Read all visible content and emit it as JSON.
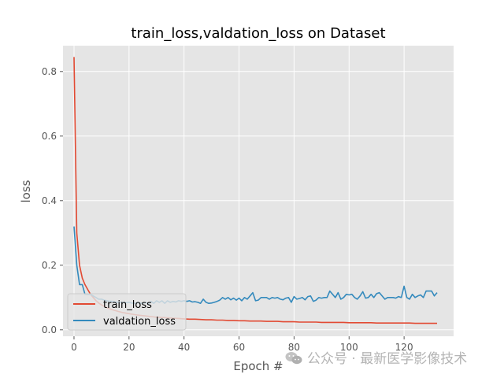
{
  "chart_data": {
    "type": "line",
    "title": "train_loss,valdation_loss on Dataset",
    "xlabel": "Epoch #",
    "ylabel": "loss",
    "xlim": [
      -4,
      138
    ],
    "ylim": [
      -0.02,
      0.88
    ],
    "xticks": [
      0,
      20,
      40,
      60,
      80,
      100,
      120
    ],
    "yticks": [
      0.0,
      0.2,
      0.4,
      0.6,
      0.8
    ],
    "ytick_labels": [
      "0.0",
      "0.2",
      "0.4",
      "0.6",
      "0.8"
    ],
    "grid": true,
    "legend_position": "lower-left",
    "series": [
      {
        "name": "train_loss",
        "color": "#e24a33",
        "x": [
          0,
          1,
          2,
          3,
          4,
          5,
          6,
          7,
          8,
          9,
          10,
          12,
          14,
          16,
          18,
          20,
          22,
          24,
          26,
          28,
          30,
          32,
          34,
          36,
          38,
          40,
          42,
          44,
          46,
          48,
          50,
          52,
          54,
          56,
          58,
          60,
          62,
          64,
          66,
          68,
          70,
          72,
          74,
          76,
          78,
          80,
          82,
          84,
          86,
          88,
          90,
          92,
          94,
          96,
          98,
          100,
          102,
          104,
          106,
          108,
          110,
          112,
          114,
          116,
          118,
          120,
          122,
          124,
          126,
          128,
          130,
          132
        ],
        "y": [
          0.845,
          0.3,
          0.2,
          0.16,
          0.14,
          0.125,
          0.11,
          0.1,
          0.09,
          0.083,
          0.077,
          0.068,
          0.062,
          0.057,
          0.053,
          0.05,
          0.047,
          0.045,
          0.043,
          0.041,
          0.039,
          0.038,
          0.037,
          0.036,
          0.035,
          0.034,
          0.033,
          0.033,
          0.032,
          0.031,
          0.031,
          0.03,
          0.03,
          0.029,
          0.029,
          0.028,
          0.028,
          0.027,
          0.027,
          0.027,
          0.026,
          0.026,
          0.026,
          0.025,
          0.025,
          0.025,
          0.024,
          0.024,
          0.024,
          0.024,
          0.023,
          0.023,
          0.023,
          0.023,
          0.023,
          0.022,
          0.022,
          0.022,
          0.022,
          0.022,
          0.021,
          0.021,
          0.021,
          0.021,
          0.021,
          0.021,
          0.021,
          0.02,
          0.02,
          0.02,
          0.02,
          0.02
        ]
      },
      {
        "name": "valdation_loss",
        "color": "#348abd",
        "x": [
          0,
          1,
          2,
          3,
          4,
          5,
          6,
          7,
          8,
          9,
          10,
          11,
          12,
          13,
          14,
          15,
          16,
          17,
          18,
          19,
          20,
          21,
          22,
          23,
          24,
          25,
          26,
          27,
          28,
          29,
          30,
          31,
          32,
          33,
          34,
          35,
          36,
          37,
          38,
          39,
          40,
          41,
          42,
          43,
          44,
          45,
          46,
          47,
          48,
          49,
          50,
          51,
          52,
          53,
          54,
          55,
          56,
          57,
          58,
          59,
          60,
          61,
          62,
          63,
          64,
          65,
          66,
          67,
          68,
          69,
          70,
          71,
          72,
          73,
          74,
          75,
          76,
          77,
          78,
          79,
          80,
          81,
          82,
          83,
          84,
          85,
          86,
          87,
          88,
          89,
          90,
          91,
          92,
          93,
          94,
          95,
          96,
          97,
          98,
          99,
          100,
          101,
          102,
          103,
          104,
          105,
          106,
          107,
          108,
          109,
          110,
          111,
          112,
          113,
          114,
          115,
          116,
          117,
          118,
          119,
          120,
          121,
          122,
          123,
          124,
          125,
          126,
          127,
          128,
          129,
          130,
          131,
          132
        ],
        "y": [
          0.32,
          0.2,
          0.14,
          0.14,
          0.11,
          0.11,
          0.11,
          0.105,
          0.1,
          0.095,
          0.095,
          0.092,
          0.09,
          0.088,
          0.088,
          0.086,
          0.085,
          0.085,
          0.085,
          0.084,
          0.085,
          0.083,
          0.082,
          0.084,
          0.083,
          0.082,
          0.085,
          0.08,
          0.088,
          0.082,
          0.09,
          0.085,
          0.09,
          0.082,
          0.09,
          0.085,
          0.088,
          0.086,
          0.09,
          0.088,
          0.09,
          0.088,
          0.09,
          0.086,
          0.087,
          0.085,
          0.082,
          0.095,
          0.085,
          0.082,
          0.083,
          0.085,
          0.088,
          0.092,
          0.1,
          0.095,
          0.1,
          0.093,
          0.098,
          0.092,
          0.098,
          0.09,
          0.1,
          0.095,
          0.105,
          0.115,
          0.09,
          0.092,
          0.1,
          0.1,
          0.1,
          0.095,
          0.1,
          0.098,
          0.1,
          0.095,
          0.093,
          0.098,
          0.1,
          0.085,
          0.103,
          0.095,
          0.097,
          0.1,
          0.093,
          0.103,
          0.105,
          0.088,
          0.092,
          0.1,
          0.098,
          0.1,
          0.1,
          0.12,
          0.11,
          0.1,
          0.115,
          0.095,
          0.1,
          0.11,
          0.108,
          0.11,
          0.1,
          0.095,
          0.105,
          0.118,
          0.098,
          0.1,
          0.11,
          0.1,
          0.112,
          0.115,
          0.105,
          0.095,
          0.1,
          0.1,
          0.1,
          0.098,
          0.103,
          0.1,
          0.135,
          0.1,
          0.095,
          0.11,
          0.1,
          0.105,
          0.108,
          0.1,
          0.12,
          0.12,
          0.12,
          0.105,
          0.115
        ]
      }
    ]
  },
  "watermark": {
    "text": "公众号 · 最新医学影像技术",
    "icon": "wechat-icon"
  }
}
